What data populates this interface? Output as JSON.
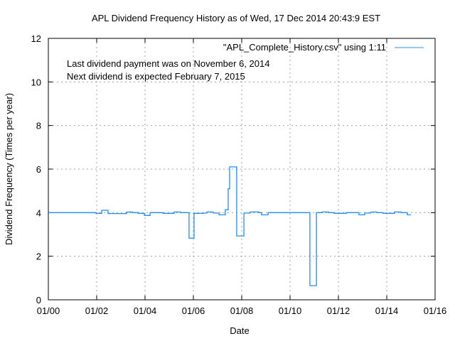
{
  "chart_data": {
    "type": "line",
    "title": "APL Dividend Frequency History as of Wed, 17 Dec 2014 20:43:9 EST",
    "xlabel": "Date",
    "ylabel": "Dividend Frequency (Times per year)",
    "xlim": [
      2000,
      2016
    ],
    "ylim": [
      0,
      12
    ],
    "grid": true,
    "x_ticks": [
      {
        "value": 2000,
        "label": "01/00"
      },
      {
        "value": 2002,
        "label": "01/02"
      },
      {
        "value": 2004,
        "label": "01/04"
      },
      {
        "value": 2006,
        "label": "01/06"
      },
      {
        "value": 2008,
        "label": "01/08"
      },
      {
        "value": 2010,
        "label": "01/10"
      },
      {
        "value": 2012,
        "label": "01/12"
      },
      {
        "value": 2014,
        "label": "01/14"
      },
      {
        "value": 2016,
        "label": "01/16"
      }
    ],
    "y_ticks": [
      {
        "value": 0,
        "label": "0"
      },
      {
        "value": 2,
        "label": "2"
      },
      {
        "value": 4,
        "label": "4"
      },
      {
        "value": 6,
        "label": "6"
      },
      {
        "value": 8,
        "label": "8"
      },
      {
        "value": 10,
        "label": "10"
      },
      {
        "value": 12,
        "label": "12"
      }
    ],
    "legend": {
      "label": "\"APL_Complete_History.csv\" using 1:11",
      "placement": "top-right"
    },
    "annotations": [
      "Last dividend payment was on November 6, 2014",
      "Next dividend is expected February 7, 2015"
    ],
    "series": [
      {
        "name": "\"APL_Complete_History.csv\" using 1:11",
        "color": "#1f8fff",
        "step": true,
        "x": [
          2000.0,
          2001.97,
          2002.21,
          2002.47,
          2003.24,
          2003.47,
          2003.71,
          2003.97,
          2004.21,
          2004.74,
          2005.21,
          2005.47,
          2005.82,
          2006.03,
          2006.41,
          2006.56,
          2006.82,
          2007.06,
          2007.32,
          2007.44,
          2007.5,
          2007.79,
          2008.09,
          2008.35,
          2008.71,
          2008.82,
          2009.09,
          2010.82,
          2011.09,
          2011.32,
          2011.59,
          2011.82,
          2012.32,
          2012.85,
          2013.09,
          2013.35,
          2013.59,
          2013.85,
          2014.32,
          2014.59,
          2014.85,
          2015.0
        ],
        "y": [
          4.0,
          3.97,
          4.11,
          3.96,
          4.03,
          4.0,
          3.97,
          3.87,
          4.0,
          3.97,
          4.03,
          4.0,
          2.83,
          3.97,
          3.98,
          4.03,
          3.98,
          3.9,
          4.13,
          5.1,
          6.1,
          2.93,
          3.98,
          4.03,
          4.0,
          3.9,
          4.0,
          0.65,
          4.0,
          4.03,
          4.0,
          3.97,
          4.0,
          3.9,
          3.98,
          4.03,
          4.0,
          3.97,
          4.03,
          4.0,
          3.9,
          3.9
        ]
      }
    ]
  }
}
